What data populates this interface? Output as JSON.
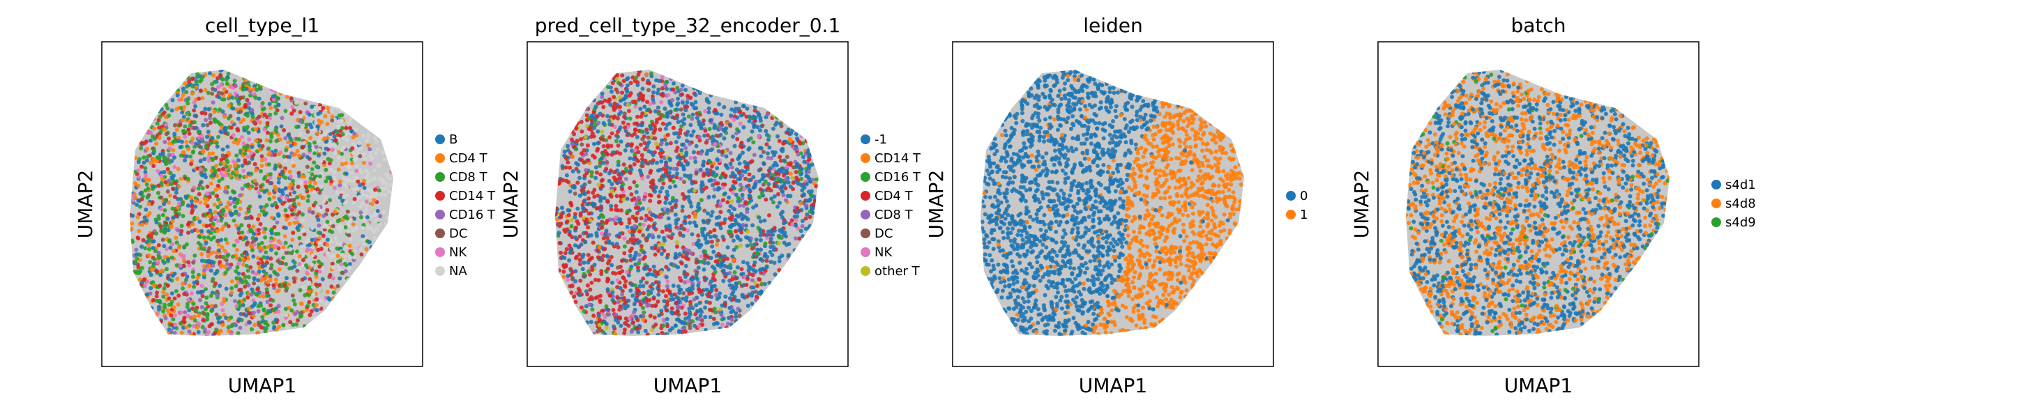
{
  "chart_data": [
    {
      "type": "scatter",
      "title": "cell_type_l1",
      "xlabel": "UMAP1",
      "ylabel": "UMAP2",
      "legend_position": "right",
      "grid": false,
      "legend": [
        {
          "name": "B",
          "color": "#1f77b4"
        },
        {
          "name": "CD4 T",
          "color": "#ff7f0e"
        },
        {
          "name": "CD8 T",
          "color": "#2ca02c"
        },
        {
          "name": "CD14 T",
          "color": "#d62728"
        },
        {
          "name": "CD16 T",
          "color": "#9467bd"
        },
        {
          "name": "DC",
          "color": "#8c564b"
        },
        {
          "name": "NK",
          "color": "#e377c2"
        },
        {
          "name": "NA",
          "color": "#d3d3d3"
        }
      ]
    },
    {
      "type": "scatter",
      "title": "pred_cell_type_32_encoder_0.1",
      "xlabel": "UMAP1",
      "ylabel": "UMAP2",
      "legend_position": "right",
      "grid": false,
      "legend": [
        {
          "name": "-1",
          "color": "#1f77b4"
        },
        {
          "name": "CD14 T",
          "color": "#ff7f0e"
        },
        {
          "name": "CD16 T",
          "color": "#2ca02c"
        },
        {
          "name": "CD4 T",
          "color": "#d62728"
        },
        {
          "name": "CD8 T",
          "color": "#9467bd"
        },
        {
          "name": "DC",
          "color": "#8c564b"
        },
        {
          "name": "NK",
          "color": "#e377c2"
        },
        {
          "name": "other T",
          "color": "#bcbd22"
        }
      ]
    },
    {
      "type": "scatter",
      "title": "leiden",
      "xlabel": "UMAP1",
      "ylabel": "UMAP2",
      "legend_position": "right",
      "grid": false,
      "legend": [
        {
          "name": "0",
          "color": "#1f77b4"
        },
        {
          "name": "1",
          "color": "#ff7f0e"
        }
      ]
    },
    {
      "type": "scatter",
      "title": "batch",
      "xlabel": "UMAP1",
      "ylabel": "UMAP2",
      "legend_position": "right",
      "grid": false,
      "legend": [
        {
          "name": "s4d1",
          "color": "#1f77b4"
        },
        {
          "name": "s4d8",
          "color": "#ff7f0e"
        },
        {
          "name": "s4d9",
          "color": "#2ca02c"
        }
      ]
    }
  ]
}
